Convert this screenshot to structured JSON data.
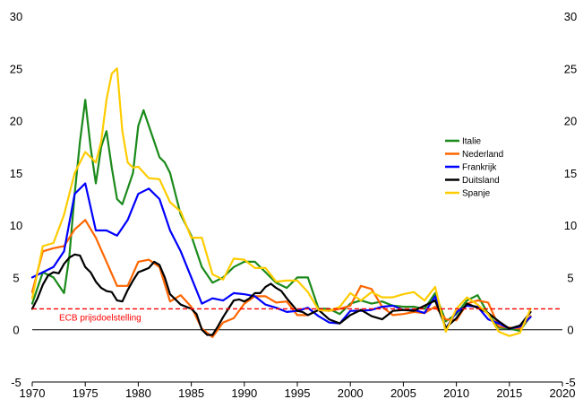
{
  "chart_data": {
    "type": "line",
    "title": "",
    "xlabel": "",
    "ylabel": "",
    "xlim": [
      1970,
      2020
    ],
    "ylim": [
      -5,
      30
    ],
    "x_ticks": [
      1970,
      1975,
      1980,
      1985,
      1990,
      1995,
      2000,
      2005,
      2010,
      2015,
      2020
    ],
    "y_ticks": [
      -5,
      0,
      5,
      10,
      15,
      20,
      25,
      30
    ],
    "y_axis_both_sides": true,
    "grid": false,
    "legend_position": "right",
    "reference_line": {
      "label": "ECB prijsdoelstelling",
      "y": 2,
      "color": "#ff0000",
      "style": "dashed"
    },
    "series": [
      {
        "name": "Italie",
        "color": "#1a8a1a",
        "points": [
          [
            1970,
            2.5
          ],
          [
            1971,
            5.5
          ],
          [
            1972,
            5.0
          ],
          [
            1973,
            3.5
          ],
          [
            1973.5,
            7.0
          ],
          [
            1974,
            13.0
          ],
          [
            1974.5,
            18.0
          ],
          [
            1975,
            22.0
          ],
          [
            1975.5,
            17.5
          ],
          [
            1976,
            14.0
          ],
          [
            1976.5,
            17.5
          ],
          [
            1977,
            19.0
          ],
          [
            1977.5,
            15.5
          ],
          [
            1978,
            12.5
          ],
          [
            1978.5,
            12.0
          ],
          [
            1979,
            13.5
          ],
          [
            1979.5,
            15.0
          ],
          [
            1980,
            19.5
          ],
          [
            1980.5,
            21.0
          ],
          [
            1981,
            19.5
          ],
          [
            1981.5,
            18.0
          ],
          [
            1982,
            16.5
          ],
          [
            1982.5,
            16.0
          ],
          [
            1983,
            15.0
          ],
          [
            1984,
            11.0
          ],
          [
            1985,
            9.0
          ],
          [
            1986,
            6.0
          ],
          [
            1987,
            4.5
          ],
          [
            1988,
            5.0
          ],
          [
            1989,
            6.0
          ],
          [
            1990,
            6.5
          ],
          [
            1991,
            6.5
          ],
          [
            1992,
            5.5
          ],
          [
            1993,
            4.5
          ],
          [
            1994,
            4.0
          ],
          [
            1995,
            5.0
          ],
          [
            1996,
            5.0
          ],
          [
            1997,
            2.0
          ],
          [
            1998,
            2.0
          ],
          [
            1999,
            1.5
          ],
          [
            2000,
            2.5
          ],
          [
            2001,
            2.8
          ],
          [
            2002,
            2.5
          ],
          [
            2003,
            2.7
          ],
          [
            2004,
            2.3
          ],
          [
            2005,
            2.2
          ],
          [
            2006,
            2.2
          ],
          [
            2007,
            2.0
          ],
          [
            2008,
            3.5
          ],
          [
            2009,
            0.8
          ],
          [
            2010,
            1.5
          ],
          [
            2011,
            2.8
          ],
          [
            2012,
            3.3
          ],
          [
            2013,
            1.5
          ],
          [
            2014,
            0.2
          ],
          [
            2015,
            0.1
          ],
          [
            2016,
            -0.1
          ],
          [
            2017,
            1.3
          ]
        ]
      },
      {
        "name": "Nederland",
        "color": "#ff6600",
        "points": [
          [
            1970,
            3.6
          ],
          [
            1971,
            7.5
          ],
          [
            1972,
            7.8
          ],
          [
            1973,
            8.0
          ],
          [
            1974,
            9.6
          ],
          [
            1975,
            10.5
          ],
          [
            1976,
            8.8
          ],
          [
            1977,
            6.5
          ],
          [
            1978,
            4.2
          ],
          [
            1979,
            4.2
          ],
          [
            1980,
            6.5
          ],
          [
            1981,
            6.7
          ],
          [
            1982,
            6.0
          ],
          [
            1983,
            2.7
          ],
          [
            1984,
            3.3
          ],
          [
            1985,
            2.2
          ],
          [
            1986,
            0.1
          ],
          [
            1987,
            -0.7
          ],
          [
            1988,
            0.7
          ],
          [
            1989,
            1.1
          ],
          [
            1990,
            2.5
          ],
          [
            1991,
            3.2
          ],
          [
            1992,
            3.2
          ],
          [
            1993,
            2.6
          ],
          [
            1994,
            2.7
          ],
          [
            1995,
            1.4
          ],
          [
            1996,
            1.4
          ],
          [
            1997,
            1.9
          ],
          [
            1998,
            1.8
          ],
          [
            1999,
            2.0
          ],
          [
            2000,
            2.3
          ],
          [
            2001,
            4.2
          ],
          [
            2002,
            3.9
          ],
          [
            2003,
            2.2
          ],
          [
            2004,
            1.4
          ],
          [
            2005,
            1.5
          ],
          [
            2006,
            1.7
          ],
          [
            2007,
            1.6
          ],
          [
            2008,
            2.2
          ],
          [
            2009,
            1.0
          ],
          [
            2010,
            0.9
          ],
          [
            2011,
            2.5
          ],
          [
            2012,
            2.8
          ],
          [
            2013,
            2.6
          ],
          [
            2014,
            0.3
          ],
          [
            2015,
            0.2
          ],
          [
            2016,
            0.1
          ],
          [
            2017,
            1.3
          ]
        ]
      },
      {
        "name": "Frankrijk",
        "color": "#0000ff",
        "points": [
          [
            1970,
            5.0
          ],
          [
            1971,
            5.5
          ],
          [
            1972,
            6.0
          ],
          [
            1973,
            7.5
          ],
          [
            1974,
            13.0
          ],
          [
            1975,
            14.0
          ],
          [
            1976,
            9.5
          ],
          [
            1977,
            9.5
          ],
          [
            1978,
            9.0
          ],
          [
            1979,
            10.5
          ],
          [
            1980,
            13.0
          ],
          [
            1981,
            13.5
          ],
          [
            1982,
            12.5
          ],
          [
            1983,
            9.5
          ],
          [
            1984,
            7.5
          ],
          [
            1985,
            5.0
          ],
          [
            1986,
            2.5
          ],
          [
            1987,
            3.0
          ],
          [
            1988,
            2.8
          ],
          [
            1989,
            3.5
          ],
          [
            1990,
            3.4
          ],
          [
            1991,
            3.2
          ],
          [
            1992,
            2.4
          ],
          [
            1993,
            2.1
          ],
          [
            1994,
            1.7
          ],
          [
            1995,
            1.8
          ],
          [
            1996,
            2.1
          ],
          [
            1997,
            1.3
          ],
          [
            1998,
            0.7
          ],
          [
            1999,
            0.6
          ],
          [
            2000,
            1.8
          ],
          [
            2001,
            1.8
          ],
          [
            2002,
            1.9
          ],
          [
            2003,
            2.2
          ],
          [
            2004,
            2.3
          ],
          [
            2005,
            1.9
          ],
          [
            2006,
            1.9
          ],
          [
            2007,
            1.6
          ],
          [
            2008,
            3.2
          ],
          [
            2009,
            0.1
          ],
          [
            2010,
            1.7
          ],
          [
            2011,
            2.3
          ],
          [
            2012,
            2.2
          ],
          [
            2013,
            1.0
          ],
          [
            2014,
            0.6
          ],
          [
            2015,
            0.1
          ],
          [
            2016,
            0.3
          ],
          [
            2017,
            1.2
          ]
        ]
      },
      {
        "name": "Duitsland",
        "color": "#000000",
        "points": [
          [
            1970,
            2.0
          ],
          [
            1970.5,
            3.0
          ],
          [
            1971,
            4.3
          ],
          [
            1971.5,
            5.2
          ],
          [
            1972,
            5.5
          ],
          [
            1972.5,
            5.4
          ],
          [
            1973,
            6.3
          ],
          [
            1973.5,
            6.9
          ],
          [
            1974,
            7.2
          ],
          [
            1974.5,
            7.1
          ],
          [
            1975,
            6.0
          ],
          [
            1975.5,
            5.5
          ],
          [
            1976,
            4.6
          ],
          [
            1976.5,
            4.0
          ],
          [
            1977,
            3.7
          ],
          [
            1977.5,
            3.6
          ],
          [
            1978,
            2.8
          ],
          [
            1978.5,
            2.7
          ],
          [
            1979,
            3.8
          ],
          [
            1979.5,
            4.7
          ],
          [
            1980,
            5.5
          ],
          [
            1980.5,
            5.7
          ],
          [
            1981,
            5.9
          ],
          [
            1981.5,
            6.5
          ],
          [
            1982,
            6.2
          ],
          [
            1982.5,
            5.0
          ],
          [
            1983,
            3.4
          ],
          [
            1984,
            2.4
          ],
          [
            1985,
            2.0
          ],
          [
            1985.5,
            1.5
          ],
          [
            1986,
            0.0
          ],
          [
            1986.5,
            -0.5
          ],
          [
            1987,
            -0.5
          ],
          [
            1987.5,
            0.3
          ],
          [
            1988,
            1.2
          ],
          [
            1988.5,
            2.0
          ],
          [
            1989,
            2.8
          ],
          [
            1989.5,
            2.9
          ],
          [
            1990,
            2.7
          ],
          [
            1990.5,
            3.0
          ],
          [
            1991,
            3.5
          ],
          [
            1991.5,
            3.5
          ],
          [
            1992,
            4.1
          ],
          [
            1992.5,
            4.4
          ],
          [
            1993,
            4.0
          ],
          [
            1993.5,
            3.7
          ],
          [
            1994,
            3.0
          ],
          [
            1994.5,
            2.4
          ],
          [
            1995,
            1.8
          ],
          [
            1995.5,
            1.7
          ],
          [
            1996,
            1.4
          ],
          [
            1997,
            1.9
          ],
          [
            1998,
            1.0
          ],
          [
            1999,
            0.6
          ],
          [
            2000,
            1.4
          ],
          [
            2001,
            1.9
          ],
          [
            2002,
            1.3
          ],
          [
            2003,
            1.0
          ],
          [
            2004,
            1.8
          ],
          [
            2005,
            1.9
          ],
          [
            2006,
            1.8
          ],
          [
            2007,
            2.3
          ],
          [
            2008,
            2.8
          ],
          [
            2009,
            0.2
          ],
          [
            2010,
            1.1
          ],
          [
            2011,
            2.5
          ],
          [
            2012,
            2.1
          ],
          [
            2013,
            1.6
          ],
          [
            2014,
            0.8
          ],
          [
            2015,
            0.1
          ],
          [
            2016,
            0.4
          ],
          [
            2017,
            1.7
          ]
        ]
      },
      {
        "name": "Spanje",
        "color": "#ffcc00",
        "points": [
          [
            1970,
            3.0
          ],
          [
            1971,
            8.0
          ],
          [
            1972,
            8.3
          ],
          [
            1973,
            11.0
          ],
          [
            1974,
            15.0
          ],
          [
            1975,
            17.0
          ],
          [
            1976,
            16.0
          ],
          [
            1976.5,
            18.0
          ],
          [
            1977,
            22.0
          ],
          [
            1977.5,
            24.5
          ],
          [
            1978,
            25.0
          ],
          [
            1978.5,
            19.0
          ],
          [
            1979,
            16.0
          ],
          [
            1979.5,
            15.5
          ],
          [
            1980,
            15.6
          ],
          [
            1981,
            14.5
          ],
          [
            1982,
            14.4
          ],
          [
            1983,
            12.2
          ],
          [
            1984,
            11.3
          ],
          [
            1985,
            8.8
          ],
          [
            1986,
            8.8
          ],
          [
            1987,
            5.3
          ],
          [
            1988,
            4.8
          ],
          [
            1989,
            6.8
          ],
          [
            1990,
            6.7
          ],
          [
            1991,
            5.9
          ],
          [
            1992,
            5.9
          ],
          [
            1993,
            4.6
          ],
          [
            1994,
            4.7
          ],
          [
            1995,
            4.7
          ],
          [
            1996,
            3.6
          ],
          [
            1997,
            1.9
          ],
          [
            1998,
            1.8
          ],
          [
            1999,
            2.2
          ],
          [
            2000,
            3.5
          ],
          [
            2001,
            2.8
          ],
          [
            2002,
            3.6
          ],
          [
            2003,
            3.1
          ],
          [
            2004,
            3.1
          ],
          [
            2005,
            3.4
          ],
          [
            2006,
            3.6
          ],
          [
            2007,
            2.8
          ],
          [
            2008,
            4.1
          ],
          [
            2009,
            -0.2
          ],
          [
            2010,
            2.0
          ],
          [
            2011,
            3.1
          ],
          [
            2012,
            2.4
          ],
          [
            2013,
            1.5
          ],
          [
            2014,
            -0.2
          ],
          [
            2015,
            -0.6
          ],
          [
            2016,
            -0.3
          ],
          [
            2017,
            2.0
          ]
        ]
      }
    ]
  }
}
